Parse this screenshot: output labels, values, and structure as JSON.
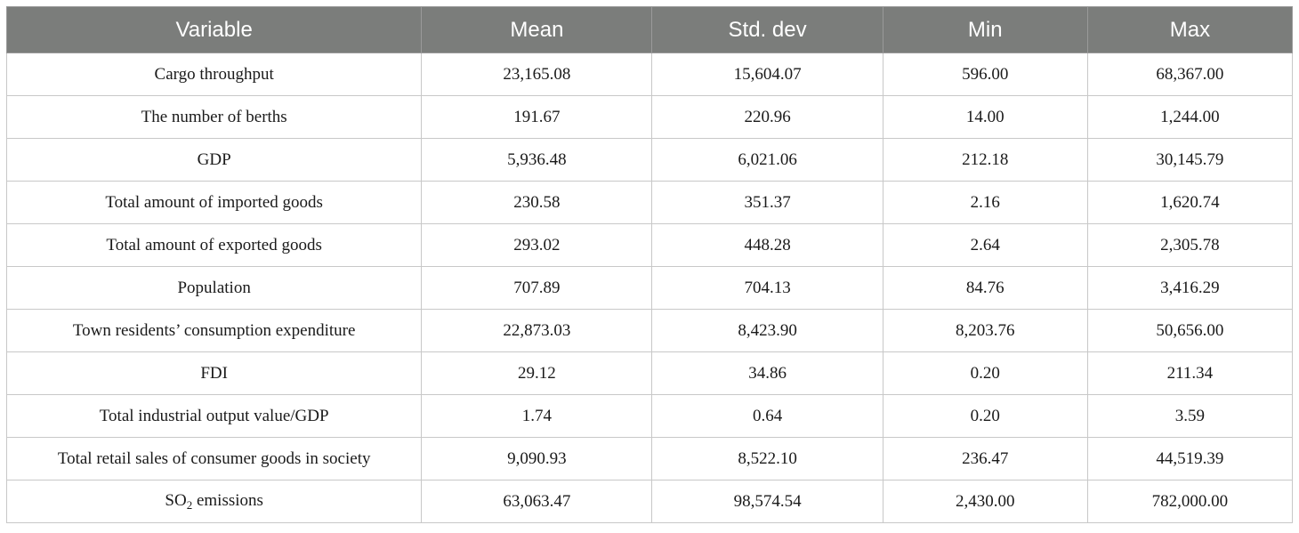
{
  "table": {
    "headers": {
      "variable": "Variable",
      "mean": "Mean",
      "std": "Std. dev",
      "min": "Min",
      "max": "Max"
    },
    "rows": [
      {
        "variable": "Cargo throughput",
        "mean": "23,165.08",
        "std": "15,604.07",
        "min": "596.00",
        "max": "68,367.00"
      },
      {
        "variable": "The number of berths",
        "mean": "191.67",
        "std": "220.96",
        "min": "14.00",
        "max": "1,244.00"
      },
      {
        "variable": "GDP",
        "mean": "5,936.48",
        "std": "6,021.06",
        "min": "212.18",
        "max": "30,145.79"
      },
      {
        "variable": "Total amount of imported goods",
        "mean": "230.58",
        "std": "351.37",
        "min": "2.16",
        "max": "1,620.74"
      },
      {
        "variable": "Total amount of exported goods",
        "mean": "293.02",
        "std": "448.28",
        "min": "2.64",
        "max": "2,305.78"
      },
      {
        "variable": "Population",
        "mean": "707.89",
        "std": "704.13",
        "min": "84.76",
        "max": "3,416.29"
      },
      {
        "variable": "Town residents’ consumption expenditure",
        "mean": "22,873.03",
        "std": "8,423.90",
        "min": "8,203.76",
        "max": "50,656.00"
      },
      {
        "variable": "FDI",
        "mean": "29.12",
        "std": "34.86",
        "min": "0.20",
        "max": "211.34"
      },
      {
        "variable": "Total industrial output value/GDP",
        "mean": "1.74",
        "std": "0.64",
        "min": "0.20",
        "max": "3.59"
      },
      {
        "variable": "Total retail sales of consumer goods in society",
        "mean": "9,090.93",
        "std": "8,522.10",
        "min": "236.47",
        "max": "44,519.39"
      },
      {
        "variable_prefix": "SO",
        "variable_sub": "2",
        "variable_suffix": " emissions",
        "mean": "63,063.47",
        "std": "98,574.54",
        "min": "2,430.00",
        "max": "782,000.00"
      }
    ]
  }
}
